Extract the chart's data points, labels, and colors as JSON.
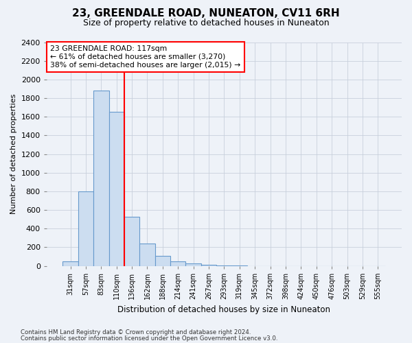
{
  "title": "23, GREENDALE ROAD, NUNEATON, CV11 6RH",
  "subtitle": "Size of property relative to detached houses in Nuneaton",
  "xlabel": "Distribution of detached houses by size in Nuneaton",
  "ylabel": "Number of detached properties",
  "bar_color": "#ccddf0",
  "bar_edge_color": "#6699cc",
  "categories": [
    "31sqm",
    "57sqm",
    "83sqm",
    "110sqm",
    "136sqm",
    "162sqm",
    "188sqm",
    "214sqm",
    "241sqm",
    "267sqm",
    "293sqm",
    "319sqm",
    "345sqm",
    "372sqm",
    "398sqm",
    "424sqm",
    "450sqm",
    "476sqm",
    "503sqm",
    "529sqm",
    "555sqm"
  ],
  "values": [
    50,
    800,
    1880,
    1650,
    530,
    240,
    105,
    50,
    30,
    15,
    5,
    2,
    1,
    1,
    0,
    0,
    0,
    0,
    0,
    0,
    0
  ],
  "red_line_x": 3.5,
  "annotation_text": "23 GREENDALE ROAD: 117sqm\n← 61% of detached houses are smaller (3,270)\n38% of semi-detached houses are larger (2,015) →",
  "ylim": [
    0,
    2400
  ],
  "yticks": [
    0,
    200,
    400,
    600,
    800,
    1000,
    1200,
    1400,
    1600,
    1800,
    2000,
    2200,
    2400
  ],
  "footer_line1": "Contains HM Land Registry data © Crown copyright and database right 2024.",
  "footer_line2": "Contains public sector information licensed under the Open Government Licence v3.0.",
  "background_color": "#eef2f8",
  "plot_bg_color": "#eef2f8",
  "grid_color": "#c8d0dc",
  "title_fontsize": 11,
  "subtitle_fontsize": 9
}
